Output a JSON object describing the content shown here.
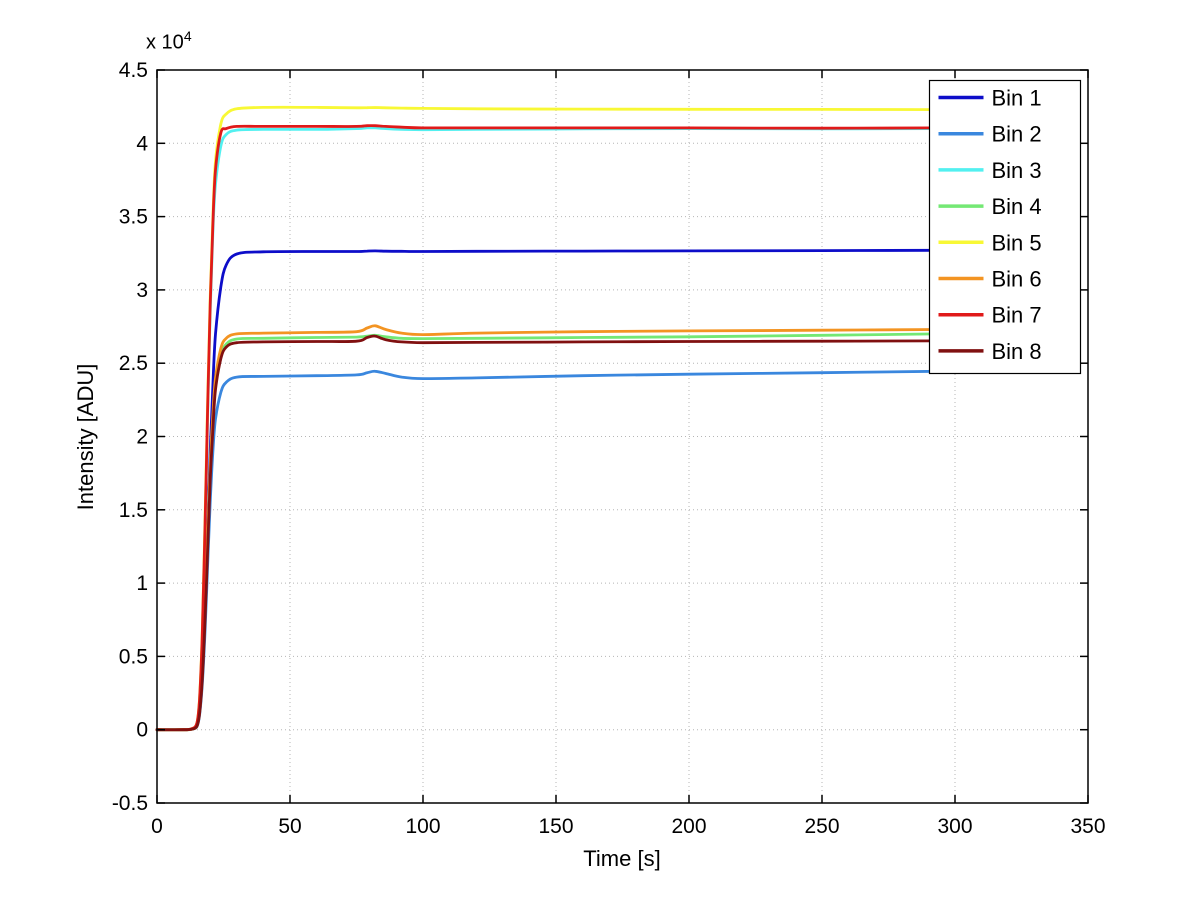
{
  "chart_data": {
    "type": "line",
    "title": "",
    "xlabel": "Time [s]",
    "ylabel": "Intensity [ADU]",
    "y_exponent_base": "x 10",
    "y_exponent": "4",
    "xlim": [
      0,
      350
    ],
    "ylim": [
      -5000,
      45000
    ],
    "xticks": [
      0,
      50,
      100,
      150,
      200,
      250,
      300,
      350
    ],
    "xtick_labels": [
      "0",
      "50",
      "100",
      "150",
      "200",
      "250",
      "300",
      "350"
    ],
    "yticks": [
      -5000,
      0,
      5000,
      10000,
      15000,
      20000,
      25000,
      30000,
      35000,
      40000,
      45000
    ],
    "ytick_labels": [
      "-0.5",
      "0",
      "0.5",
      "1",
      "1.5",
      "2",
      "2.5",
      "3",
      "3.5",
      "4",
      "4.5"
    ],
    "grid": true,
    "legend_position": "top-right",
    "x": [
      0,
      10,
      13,
      15,
      16,
      17,
      18,
      19,
      20,
      21,
      22,
      24,
      26,
      30,
      40,
      60,
      75,
      79,
      82,
      86,
      92,
      100,
      120,
      160,
      200,
      250,
      293
    ],
    "series": [
      {
        "name": "Bin 1",
        "color": "#0D0DC9",
        "y": [
          0,
          0,
          40,
          300,
          1400,
          3800,
          8000,
          13500,
          19000,
          23500,
          27000,
          30200,
          31700,
          32450,
          32600,
          32620,
          32620,
          32650,
          32660,
          32640,
          32630,
          32620,
          32630,
          32650,
          32660,
          32680,
          32700
        ]
      },
      {
        "name": "Bin 2",
        "color": "#3A87DE",
        "y": [
          0,
          0,
          30,
          200,
          1000,
          3000,
          6500,
          11000,
          15500,
          19000,
          21200,
          23000,
          23700,
          24050,
          24100,
          24150,
          24200,
          24350,
          24450,
          24300,
          24050,
          23950,
          24000,
          24150,
          24250,
          24350,
          24450
        ]
      },
      {
        "name": "Bin 3",
        "color": "#52F0F0",
        "y": [
          0,
          0,
          60,
          400,
          2000,
          6000,
          13000,
          21000,
          28500,
          34000,
          37200,
          39800,
          40600,
          40900,
          40950,
          40950,
          41000,
          41050,
          41050,
          41000,
          40950,
          40930,
          40950,
          40980,
          41000,
          40980,
          41000
        ]
      },
      {
        "name": "Bin 4",
        "color": "#74E874",
        "y": [
          0,
          0,
          30,
          250,
          1200,
          3500,
          7500,
          12500,
          17500,
          21000,
          23500,
          25500,
          26300,
          26650,
          26700,
          26750,
          26780,
          26850,
          26900,
          26800,
          26700,
          26680,
          26700,
          26750,
          26800,
          26900,
          27000
        ]
      },
      {
        "name": "Bin 5",
        "color": "#F8F835",
        "y": [
          0,
          0,
          60,
          450,
          2200,
          6500,
          14000,
          22000,
          29500,
          35000,
          38800,
          41300,
          42000,
          42350,
          42450,
          42450,
          42420,
          42430,
          42440,
          42420,
          42400,
          42380,
          42350,
          42330,
          42320,
          42310,
          42300
        ]
      },
      {
        "name": "Bin 6",
        "color": "#F39422",
        "y": [
          0,
          0,
          30,
          250,
          1200,
          3600,
          7800,
          13000,
          18000,
          21500,
          24000,
          26000,
          26700,
          27000,
          27050,
          27100,
          27150,
          27400,
          27550,
          27300,
          27050,
          26950,
          27050,
          27150,
          27200,
          27250,
          27300
        ]
      },
      {
        "name": "Bin 7",
        "color": "#E01A1A",
        "y": [
          0,
          0,
          60,
          450,
          2100,
          6300,
          13500,
          21500,
          29000,
          34500,
          38200,
          40700,
          41000,
          41150,
          41150,
          41150,
          41150,
          41200,
          41200,
          41150,
          41100,
          41050,
          41050,
          41050,
          41050,
          41030,
          41050
        ]
      },
      {
        "name": "Bin 8",
        "color": "#801010",
        "y": [
          0,
          0,
          30,
          230,
          1100,
          3300,
          7200,
          12000,
          17000,
          20500,
          23200,
          25300,
          26100,
          26400,
          26450,
          26480,
          26500,
          26750,
          26850,
          26600,
          26450,
          26400,
          26420,
          26450,
          26480,
          26500,
          26520
        ]
      }
    ],
    "style": {
      "grid_color": "#b5b5b5",
      "axis_color": "#000000",
      "line_width": 2.8,
      "background": "#ffffff"
    }
  }
}
